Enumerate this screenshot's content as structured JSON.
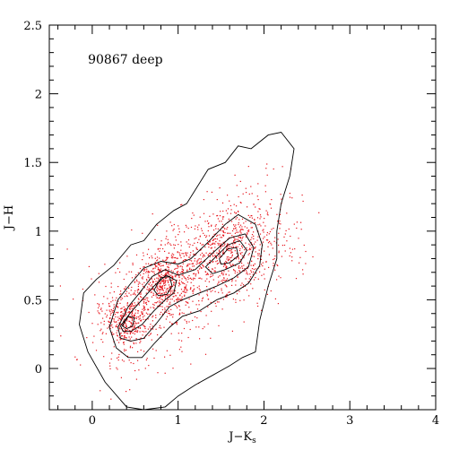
{
  "chart_data": {
    "type": "scatter",
    "title": "90867 deep",
    "xlabel": "J−K",
    "xlabel_subscript": "s",
    "ylabel": "J−H",
    "xlim": [
      -0.5,
      4.0
    ],
    "ylim": [
      -0.3,
      2.5
    ],
    "grid": false,
    "legend": "none",
    "x_ticks": [
      0,
      1,
      2,
      3,
      4
    ],
    "x_tick_labels": [
      "0",
      "1",
      "2",
      "3",
      "4"
    ],
    "y_ticks": [
      0,
      0.5,
      1,
      1.5,
      2,
      2.5
    ],
    "y_tick_labels": [
      "0",
      "0.5",
      "1",
      "1.5",
      "2",
      "2.5"
    ],
    "colors": {
      "points": "#e8141c",
      "contours": "#000000",
      "frame": "#000000"
    },
    "density_peaks": [
      {
        "x": 0.4,
        "y": 0.35
      },
      {
        "x": 0.83,
        "y": 0.63
      },
      {
        "x": 1.55,
        "y": 0.85
      }
    ],
    "contours": [
      {
        "level": 1,
        "points": [
          [
            -0.1,
            0.55
          ],
          [
            0.05,
            0.65
          ],
          [
            0.25,
            0.75
          ],
          [
            0.45,
            0.9
          ],
          [
            0.6,
            0.93
          ],
          [
            0.75,
            1.05
          ],
          [
            0.95,
            1.15
          ],
          [
            1.1,
            1.2
          ],
          [
            1.2,
            1.3
          ],
          [
            1.35,
            1.45
          ],
          [
            1.55,
            1.5
          ],
          [
            1.7,
            1.62
          ],
          [
            1.85,
            1.6
          ],
          [
            2.05,
            1.7
          ],
          [
            2.2,
            1.72
          ],
          [
            2.35,
            1.6
          ],
          [
            2.3,
            1.4
          ],
          [
            2.2,
            1.2
          ],
          [
            2.15,
            1.0
          ],
          [
            2.15,
            0.8
          ],
          [
            2.05,
            0.6
          ],
          [
            1.95,
            0.35
          ],
          [
            1.9,
            0.12
          ],
          [
            1.75,
            0.08
          ],
          [
            1.6,
            0.02
          ],
          [
            1.4,
            -0.05
          ],
          [
            1.2,
            -0.12
          ],
          [
            1.0,
            -0.2
          ],
          [
            0.85,
            -0.28
          ],
          [
            0.6,
            -0.3
          ],
          [
            0.4,
            -0.28
          ],
          [
            0.15,
            -0.1
          ],
          [
            -0.05,
            0.12
          ],
          [
            -0.15,
            0.32
          ]
        ]
      },
      {
        "level": 2,
        "points": [
          [
            0.2,
            0.3
          ],
          [
            0.3,
            0.5
          ],
          [
            0.45,
            0.62
          ],
          [
            0.6,
            0.73
          ],
          [
            0.8,
            0.78
          ],
          [
            1.0,
            0.76
          ],
          [
            1.15,
            0.8
          ],
          [
            1.35,
            0.92
          ],
          [
            1.55,
            1.05
          ],
          [
            1.7,
            1.12
          ],
          [
            1.9,
            1.05
          ],
          [
            1.98,
            0.9
          ],
          [
            1.95,
            0.75
          ],
          [
            1.82,
            0.62
          ],
          [
            1.65,
            0.55
          ],
          [
            1.45,
            0.5
          ],
          [
            1.25,
            0.42
          ],
          [
            1.05,
            0.38
          ],
          [
            0.9,
            0.3
          ],
          [
            0.72,
            0.18
          ],
          [
            0.58,
            0.08
          ],
          [
            0.42,
            0.08
          ],
          [
            0.28,
            0.15
          ]
        ]
      },
      {
        "level": 3,
        "points": [
          [
            0.3,
            0.3
          ],
          [
            0.42,
            0.45
          ],
          [
            0.55,
            0.55
          ],
          [
            0.7,
            0.67
          ],
          [
            0.85,
            0.72
          ],
          [
            1.0,
            0.68
          ],
          [
            1.2,
            0.72
          ],
          [
            1.4,
            0.84
          ],
          [
            1.6,
            0.95
          ],
          [
            1.78,
            0.98
          ],
          [
            1.88,
            0.88
          ],
          [
            1.82,
            0.74
          ],
          [
            1.65,
            0.66
          ],
          [
            1.45,
            0.6
          ],
          [
            1.25,
            0.55
          ],
          [
            1.05,
            0.5
          ],
          [
            0.9,
            0.45
          ],
          [
            0.75,
            0.33
          ],
          [
            0.6,
            0.22
          ],
          [
            0.45,
            0.2
          ],
          [
            0.33,
            0.22
          ]
        ]
      },
      {
        "level": 4,
        "points": [
          [
            0.33,
            0.31
          ],
          [
            0.45,
            0.41
          ],
          [
            0.58,
            0.5
          ],
          [
            0.72,
            0.6
          ],
          [
            0.86,
            0.68
          ],
          [
            0.98,
            0.64
          ],
          [
            0.95,
            0.55
          ],
          [
            0.85,
            0.5
          ],
          [
            0.72,
            0.42
          ],
          [
            0.58,
            0.32
          ],
          [
            0.45,
            0.27
          ],
          [
            0.36,
            0.27
          ]
        ]
      },
      {
        "level": 5,
        "points": [
          [
            1.32,
            0.74
          ],
          [
            1.45,
            0.82
          ],
          [
            1.58,
            0.9
          ],
          [
            1.72,
            0.93
          ],
          [
            1.8,
            0.86
          ],
          [
            1.72,
            0.77
          ],
          [
            1.55,
            0.72
          ],
          [
            1.4,
            0.69
          ]
        ]
      },
      {
        "level": 6,
        "points": [
          [
            0.72,
            0.57
          ],
          [
            0.8,
            0.66
          ],
          [
            0.9,
            0.67
          ],
          [
            0.93,
            0.6
          ],
          [
            0.87,
            0.54
          ],
          [
            0.77,
            0.53
          ]
        ]
      },
      {
        "level": 7,
        "points": [
          [
            1.48,
            0.8
          ],
          [
            1.58,
            0.87
          ],
          [
            1.68,
            0.88
          ],
          [
            1.7,
            0.82
          ],
          [
            1.6,
            0.77
          ],
          [
            1.5,
            0.76
          ]
        ]
      },
      {
        "level": 8,
        "points": [
          [
            0.35,
            0.31
          ],
          [
            0.42,
            0.38
          ],
          [
            0.49,
            0.37
          ],
          [
            0.47,
            0.31
          ],
          [
            0.4,
            0.29
          ]
        ]
      }
    ]
  }
}
